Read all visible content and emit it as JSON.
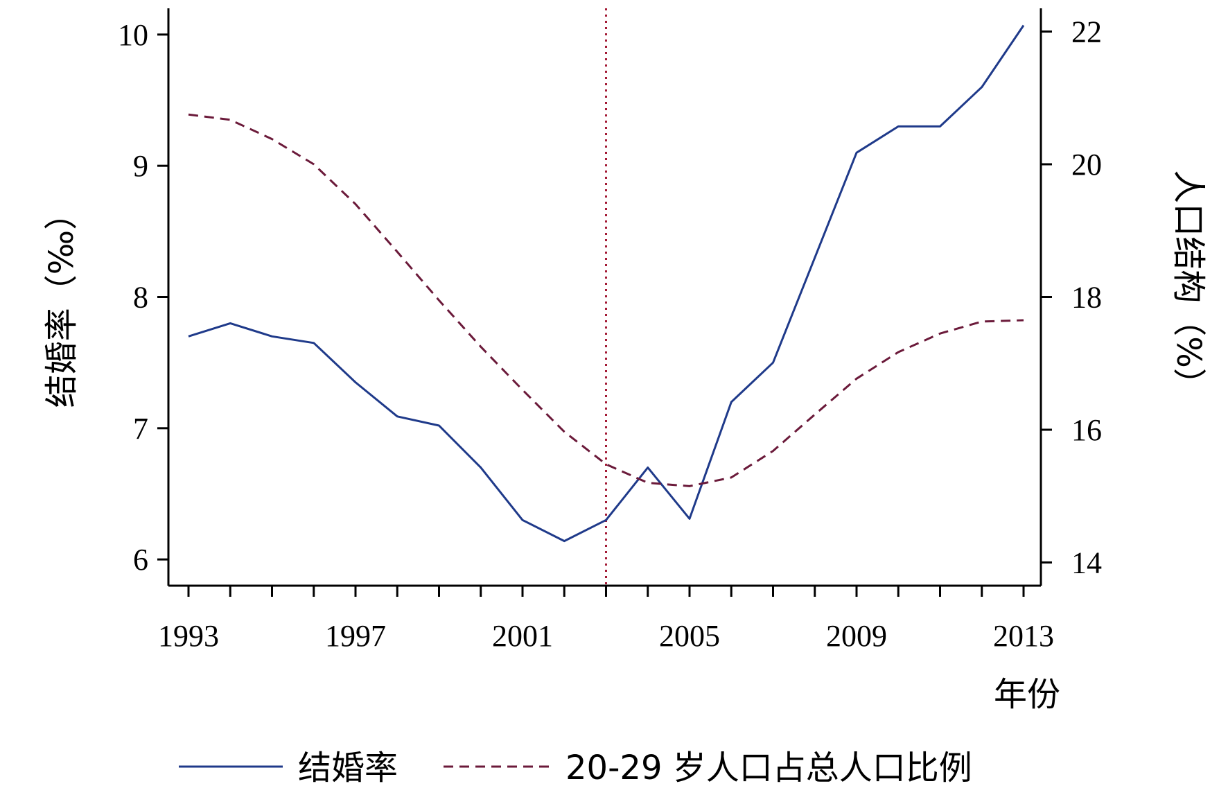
{
  "chart_data": {
    "type": "line",
    "x": [
      1993,
      1994,
      1995,
      1996,
      1997,
      1998,
      1999,
      2000,
      2001,
      2002,
      2003,
      2004,
      2005,
      2006,
      2007,
      2008,
      2009,
      2010,
      2011,
      2012,
      2013
    ],
    "x_ticks": [
      1993,
      1997,
      2001,
      2005,
      2009,
      2013
    ],
    "xlim": [
      1993,
      2013
    ],
    "xlabel": "年份",
    "y_left": {
      "label": "结婚率（‰）",
      "ticks": [
        6,
        7,
        8,
        9,
        10
      ],
      "lim": [
        5.8,
        10.2
      ]
    },
    "y_right": {
      "label": "人口结构（%）",
      "ticks": [
        14,
        16,
        18,
        20,
        22
      ],
      "lim": [
        13.65,
        22.35
      ]
    },
    "vline": {
      "x": 2003,
      "color": "#a31a35",
      "style": "dotted"
    },
    "series": [
      {
        "name": "结婚率",
        "axis": "left",
        "color": "#1f3a8a",
        "style": "solid",
        "values": [
          7.7,
          7.8,
          7.7,
          7.65,
          7.35,
          7.09,
          7.02,
          6.7,
          6.3,
          6.14,
          6.3,
          6.7,
          6.31,
          7.2,
          7.5,
          8.3,
          9.1,
          9.3,
          9.3,
          9.6,
          10.07
        ]
      },
      {
        "name": "20-29 岁人口占总人口比例",
        "axis": "right",
        "color": "#6b1a3a",
        "style": "dashed",
        "values": [
          20.75,
          20.67,
          20.38,
          20.0,
          19.4,
          18.68,
          17.95,
          17.25,
          16.6,
          15.97,
          15.48,
          15.2,
          15.15,
          15.28,
          15.68,
          16.23,
          16.77,
          17.17,
          17.45,
          17.63,
          17.65
        ]
      }
    ],
    "legend": {
      "position": "bottom"
    }
  }
}
